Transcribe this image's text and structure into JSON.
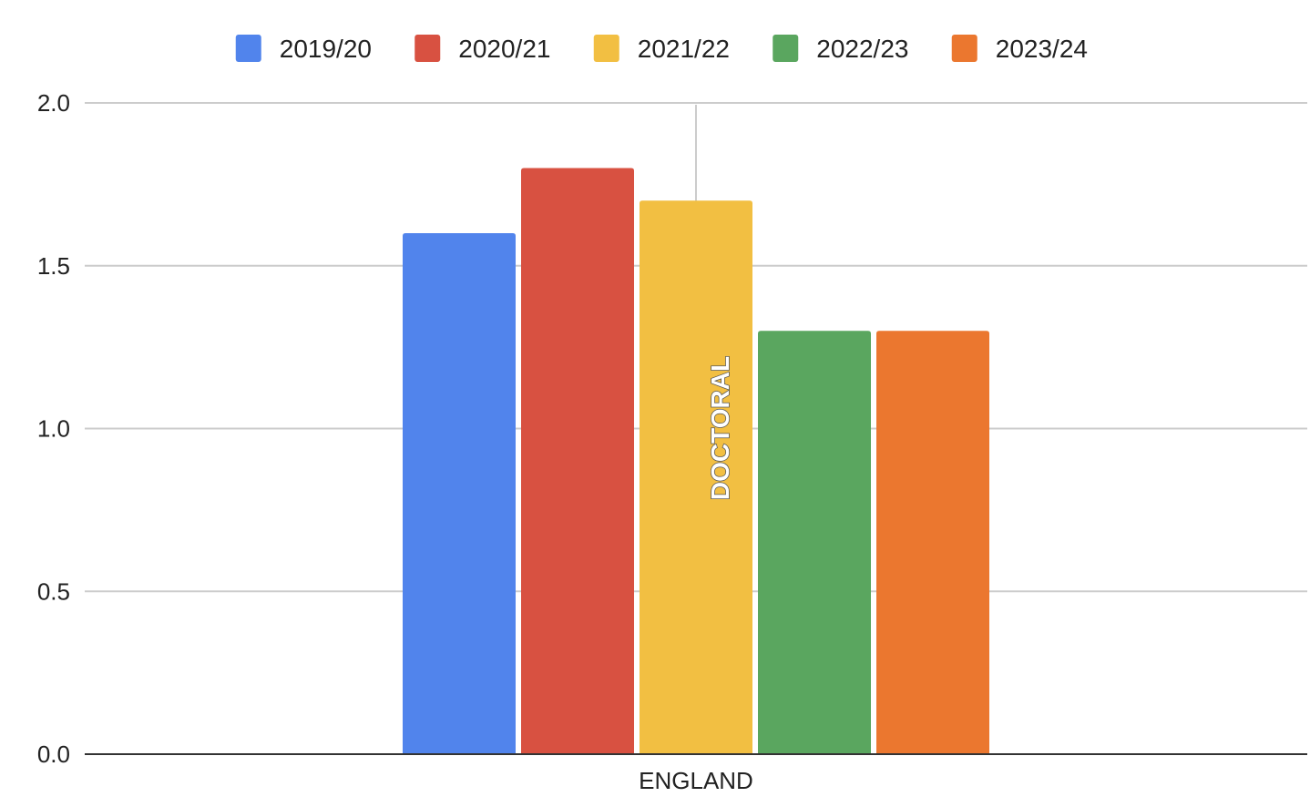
{
  "chart_data": {
    "type": "bar",
    "categories": [
      "ENGLAND"
    ],
    "series": [
      {
        "name": "2019/20",
        "values": [
          1.6
        ],
        "color": "#5184ec"
      },
      {
        "name": "2020/21",
        "values": [
          1.8
        ],
        "color": "#d85141"
      },
      {
        "name": "2021/22",
        "values": [
          1.7
        ],
        "color": "#f2bf42"
      },
      {
        "name": "2022/23",
        "values": [
          1.3
        ],
        "color": "#5aa65f"
      },
      {
        "name": "2023/24",
        "values": [
          1.3
        ],
        "color": "#eb772f"
      }
    ],
    "bar_annotation": "DOCTORAL",
    "yticks": [
      "0.0",
      "0.5",
      "1.0",
      "1.5",
      "2.0"
    ],
    "ylim": [
      0,
      2.0
    ],
    "title": "",
    "xlabel": "",
    "ylabel": "",
    "grid": true,
    "legend_position": "top"
  }
}
